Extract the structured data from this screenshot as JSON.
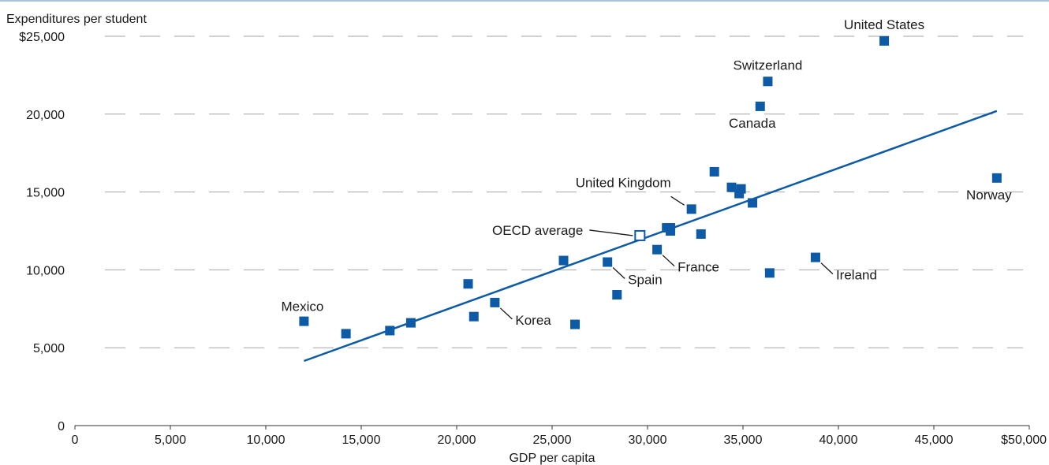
{
  "chart_data": {
    "type": "scatter",
    "xlabel": "GDP per capita",
    "ylabel": "Expenditures per student",
    "xlim": [
      0,
      50000
    ],
    "ylim": [
      0,
      25000
    ],
    "x_ticks": [
      {
        "value": 0,
        "label": "0"
      },
      {
        "value": 5000,
        "label": "5,000"
      },
      {
        "value": 10000,
        "label": "10,000"
      },
      {
        "value": 15000,
        "label": "15,000"
      },
      {
        "value": 20000,
        "label": "20,000"
      },
      {
        "value": 25000,
        "label": "25,000"
      },
      {
        "value": 30000,
        "label": "30,000"
      },
      {
        "value": 35000,
        "label": "35,000"
      },
      {
        "value": 40000,
        "label": "40,000"
      },
      {
        "value": 45000,
        "label": "45,000"
      },
      {
        "value": 50000,
        "label": "$50,000"
      }
    ],
    "y_ticks": [
      {
        "value": 0,
        "label": "0"
      },
      {
        "value": 5000,
        "label": "5,000"
      },
      {
        "value": 10000,
        "label": "10,000"
      },
      {
        "value": 15000,
        "label": "15,000"
      },
      {
        "value": 20000,
        "label": "20,000"
      },
      {
        "value": 25000,
        "label": "$25,000"
      }
    ],
    "grid": "horizontal dashed",
    "colors": {
      "marker": "#0d5aa7",
      "trend": "#0d5aa7",
      "grid": "#a6a6a6"
    },
    "trendline": {
      "x": [
        12000,
        48300
      ],
      "y": [
        4150,
        20200
      ]
    },
    "points": [
      {
        "label": "United States",
        "x": 42400,
        "y": 24700,
        "label_pos": "above"
      },
      {
        "label": "Switzerland",
        "x": 36300,
        "y": 22100,
        "label_pos": "above"
      },
      {
        "label": "Canada",
        "x": 35900,
        "y": 20500,
        "label_pos": "below"
      },
      {
        "label": "Norway",
        "x": 48300,
        "y": 15900,
        "label_pos": "below"
      },
      {
        "label": "United Kingdom",
        "x": 32300,
        "y": 13900,
        "label_pos": "leader-upleft"
      },
      {
        "label": "France",
        "x": 30500,
        "y": 11300,
        "label_pos": "leader-downright"
      },
      {
        "label": "Ireland",
        "x": 38800,
        "y": 10800,
        "label_pos": "leader-downright"
      },
      {
        "label": "Spain",
        "x": 27900,
        "y": 10500,
        "label_pos": "leader-downright"
      },
      {
        "label": "Korea",
        "x": 22000,
        "y": 7900,
        "label_pos": "leader-downright"
      },
      {
        "label": "Mexico",
        "x": 12000,
        "y": 6700,
        "label_pos": "above-left"
      },
      {
        "label": "",
        "x": 33500,
        "y": 16300
      },
      {
        "label": "",
        "x": 34400,
        "y": 15300
      },
      {
        "label": "",
        "x": 34900,
        "y": 15200
      },
      {
        "label": "",
        "x": 34800,
        "y": 14900
      },
      {
        "label": "",
        "x": 35500,
        "y": 14300
      },
      {
        "label": "",
        "x": 31000,
        "y": 12700
      },
      {
        "label": "",
        "x": 31200,
        "y": 12700
      },
      {
        "label": "",
        "x": 31200,
        "y": 12500
      },
      {
        "label": "",
        "x": 32800,
        "y": 12300
      },
      {
        "label": "",
        "x": 25600,
        "y": 10600
      },
      {
        "label": "",
        "x": 36400,
        "y": 9800
      },
      {
        "label": "",
        "x": 20600,
        "y": 9100
      },
      {
        "label": "",
        "x": 28400,
        "y": 8400
      },
      {
        "label": "",
        "x": 20900,
        "y": 7000
      },
      {
        "label": "",
        "x": 17600,
        "y": 6600
      },
      {
        "label": "",
        "x": 26200,
        "y": 6500
      },
      {
        "label": "",
        "x": 16500,
        "y": 6100
      },
      {
        "label": "",
        "x": 14200,
        "y": 5900
      }
    ],
    "average": {
      "label": "OECD average",
      "x": 29600,
      "y": 12200,
      "label_pos": "leader-left"
    }
  }
}
